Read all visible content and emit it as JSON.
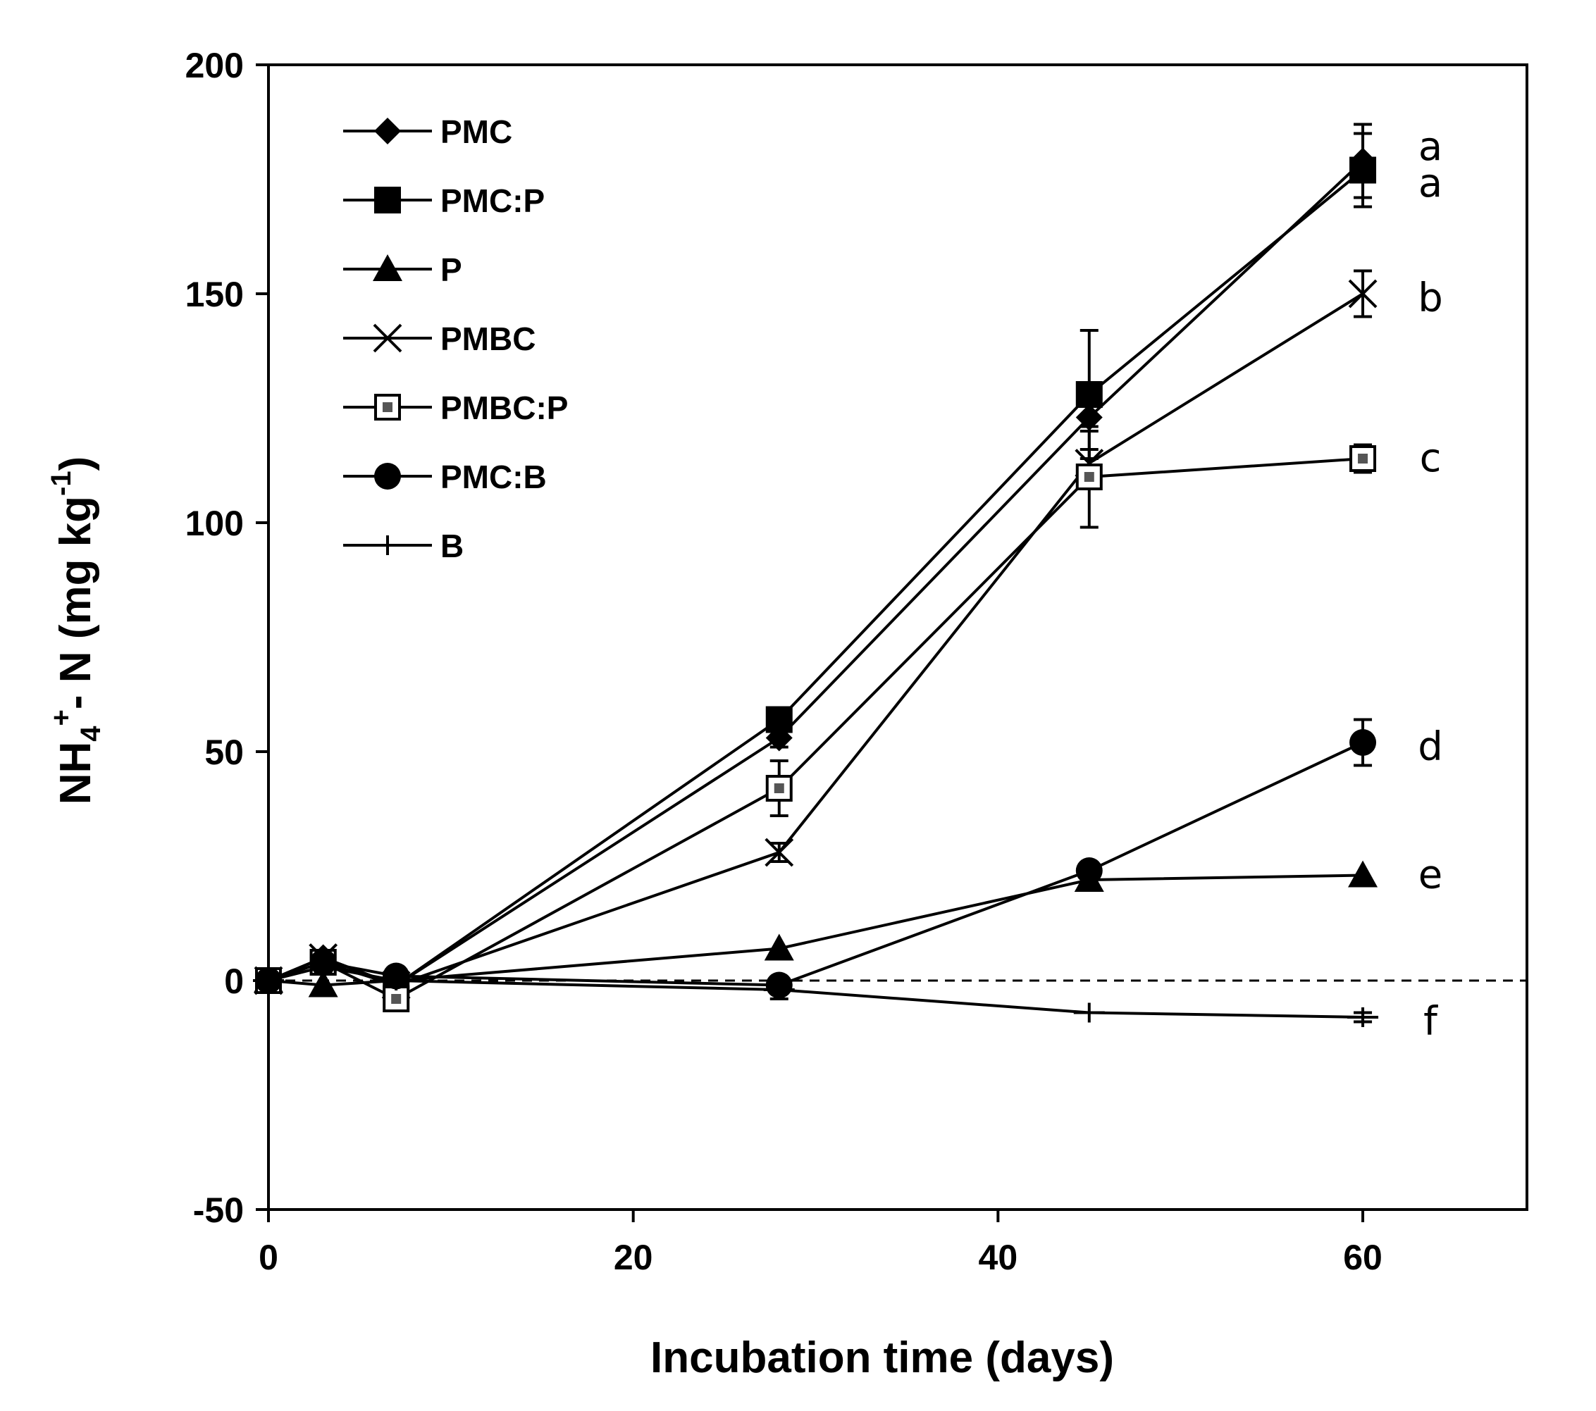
{
  "chart_data": {
    "type": "line",
    "xlabel": "Incubation time  (days)",
    "ylabel": {
      "base": "NH",
      "sub": "4",
      "sup": "+",
      "rest": "- N (mg kg",
      "unit_sup": "-1",
      "close": ")"
    },
    "xlim": [
      0,
      69
    ],
    "ylim": [
      -50,
      200
    ],
    "x_ticks": [
      0,
      20,
      40,
      60
    ],
    "y_ticks": [
      -50,
      0,
      50,
      100,
      150,
      200
    ],
    "grid": false,
    "reference_line": {
      "y": 0,
      "style": "dashed"
    },
    "legend_position": "top-left",
    "series": [
      {
        "name": "PMC",
        "marker": "diamond",
        "x": [
          0,
          3,
          7,
          28,
          45,
          60
        ],
        "y": [
          0,
          5,
          -1,
          53,
          123,
          179
        ],
        "error": [
          0,
          1,
          1,
          2,
          3,
          8
        ]
      },
      {
        "name": "PMC:P",
        "marker": "square",
        "x": [
          0,
          3,
          7,
          28,
          45,
          60
        ],
        "y": [
          0,
          4,
          -1,
          57,
          128,
          177
        ],
        "error": [
          0,
          1,
          1,
          2,
          14,
          8
        ]
      },
      {
        "name": "P",
        "marker": "triangle",
        "x": [
          0,
          3,
          7,
          28,
          45,
          60
        ],
        "y": [
          0,
          -1,
          0,
          7,
          22,
          23
        ],
        "error": [
          0,
          0,
          0,
          0,
          0,
          0
        ]
      },
      {
        "name": "PMBC",
        "marker": "x",
        "x": [
          0,
          3,
          7,
          28,
          45,
          60
        ],
        "y": [
          0,
          5,
          -1,
          28,
          113,
          150
        ],
        "error": [
          0,
          1,
          1,
          2,
          3,
          5
        ]
      },
      {
        "name": "PMBC:P",
        "marker": "open-square",
        "x": [
          0,
          3,
          7,
          28,
          45,
          60
        ],
        "y": [
          0,
          4,
          -4,
          42,
          110,
          114
        ],
        "error": [
          0,
          1,
          1,
          6,
          11,
          3
        ]
      },
      {
        "name": "PMC:B",
        "marker": "circle",
        "x": [
          0,
          3,
          7,
          28,
          45,
          60
        ],
        "y": [
          0,
          4,
          1,
          -1,
          24,
          52
        ],
        "error": [
          0,
          1,
          1,
          0,
          0,
          5
        ]
      },
      {
        "name": "B",
        "marker": "plus",
        "x": [
          0,
          3,
          7,
          28,
          45,
          60
        ],
        "y": [
          0,
          3,
          0,
          -2,
          -7,
          -8
        ],
        "error": [
          0,
          1,
          1,
          2,
          0,
          1
        ]
      }
    ],
    "annotations": [
      {
        "text": "a",
        "x": 60,
        "y": 182
      },
      {
        "text": "a",
        "x": 60,
        "y": 174
      },
      {
        "text": "b",
        "x": 60,
        "y": 149
      },
      {
        "text": "c",
        "x": 60,
        "y": 114
      },
      {
        "text": "d",
        "x": 60,
        "y": 51
      },
      {
        "text": "e",
        "x": 60,
        "y": 23
      },
      {
        "text": "f",
        "x": 60,
        "y": -9
      }
    ]
  }
}
